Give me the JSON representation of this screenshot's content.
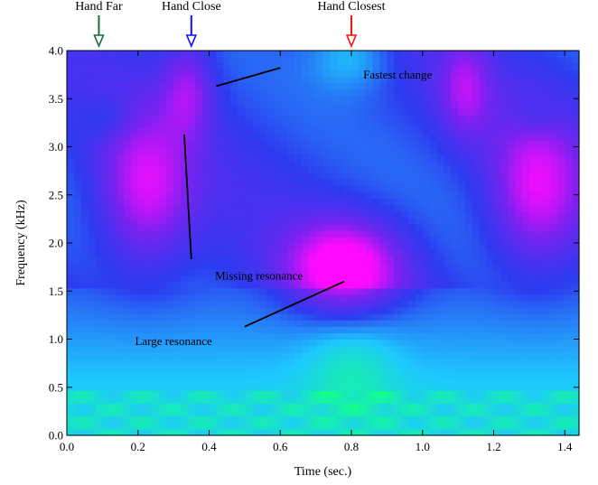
{
  "chart_data": {
    "type": "heatmap",
    "title": "",
    "xlabel": "Time (sec.)",
    "ylabel": "Frequency (kHz)",
    "xlim": [
      0,
      1.44
    ],
    "ylim": [
      0,
      4.0
    ],
    "x_ticks": [
      "0.0",
      "0.2",
      "0.4",
      "0.6",
      "0.8",
      "1.0",
      "1.2",
      "1.4"
    ],
    "y_ticks": [
      "0.0",
      "0.5",
      "1.0",
      "1.5",
      "2.0",
      "2.5",
      "3.0",
      "3.5",
      "4.0"
    ],
    "colormap": {
      "low": "#12ff8c",
      "mid_low": "#1ec8ff",
      "mid": "#2d3bf0",
      "mid_high": "#7a22f0",
      "high": "#ff0aff"
    },
    "markers": [
      {
        "label": "Hand Far",
        "time": 0.09,
        "color": "#1a6e3a"
      },
      {
        "label": "Hand Close",
        "time": 0.35,
        "color": "#1010ff"
      },
      {
        "label": "Hand Closest",
        "time": 0.8,
        "color": "#ff1010"
      }
    ],
    "annotations": [
      {
        "label": "Fastest change",
        "text_at": [
          0.93,
          3.75
        ],
        "line_from": [
          0.6,
          3.82
        ],
        "line_to": [
          0.42,
          3.63
        ]
      },
      {
        "label": "Missing resonance",
        "text_at": [
          0.54,
          1.66
        ],
        "line_from": [
          0.35,
          1.83
        ],
        "line_to": [
          0.33,
          3.13
        ]
      },
      {
        "label": "Large resonance",
        "text_at": [
          0.3,
          0.98
        ],
        "line_from": [
          0.5,
          1.13
        ],
        "line_to": [
          0.78,
          1.6
        ]
      }
    ]
  }
}
